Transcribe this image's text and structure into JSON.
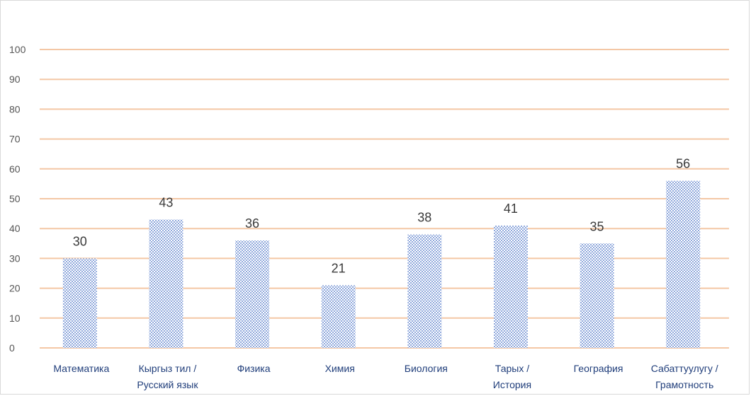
{
  "chart_data": {
    "type": "bar",
    "title": "",
    "xlabel": "",
    "ylabel": "",
    "ylim": [
      0,
      100
    ],
    "yticks": [
      0,
      10,
      20,
      30,
      40,
      50,
      60,
      70,
      80,
      90,
      100
    ],
    "grid": true,
    "legend": "none",
    "bar_color": "#8fa8dc",
    "bar_pattern": "checkered",
    "gridline_color": "#f4c7a5",
    "categories": [
      [
        "Математика"
      ],
      [
        "Кыргыз тил /",
        "Русский язык"
      ],
      [
        "Физика"
      ],
      [
        "Химия"
      ],
      [
        "Биология"
      ],
      [
        "Тарых /",
        "История"
      ],
      [
        "География"
      ],
      [
        "Сабаттуулугу /",
        "Грамотность"
      ]
    ],
    "values": [
      30,
      43,
      36,
      21,
      38,
      41,
      35,
      56
    ],
    "data_labels": [
      "30",
      "43",
      "36",
      "21",
      "38",
      "41",
      "35",
      "56"
    ]
  }
}
